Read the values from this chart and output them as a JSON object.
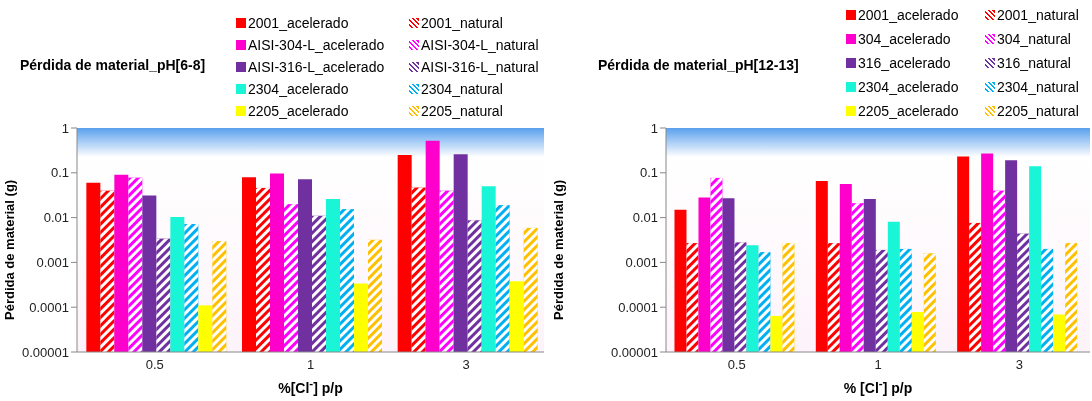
{
  "chart_data": [
    {
      "type": "bar",
      "title": "Pérdida de material_pH[6-8]",
      "xlabel": "%[Cl$^{-}$] p/p",
      "ylabel": "Pérdida de material (g)",
      "categories": [
        "0.5",
        "1",
        "3"
      ],
      "log": "y",
      "ylim": [
        1e-05,
        1
      ],
      "yticks": [
        {
          "value": 1e-05,
          "label": "0.00001"
        },
        0.0001,
        0.001,
        0.01,
        0.1,
        1
      ],
      "grid": false,
      "legend": "top right",
      "series": [
        {
          "name": "2001_acelerado",
          "color": "#ff0000",
          "values": [
            0.06,
            0.08,
            0.25
          ]
        },
        {
          "name": "2001_natural",
          "color": "#ff0000",
          "values": [
            0.04,
            0.046,
            0.047
          ]
        },
        {
          "name": "AISI-304-L_acelerado",
          "color": "#ff00cc",
          "values": [
            0.09,
            0.097,
            0.52
          ]
        },
        {
          "name": "AISI-304-L_natural",
          "color": "#ff00ff",
          "values": [
            0.078,
            0.02,
            0.04
          ]
        },
        {
          "name": "AISI-316-L_acelerado",
          "color": "#7030a0",
          "values": [
            0.031,
            0.072,
            0.26
          ]
        },
        {
          "name": "AISI-316-L_natural",
          "color": "#7030a0",
          "values": [
            0.0034,
            0.011,
            0.0087
          ]
        },
        {
          "name": "2304_acelerado",
          "color": "#19f5d6",
          "values": [
            0.0103,
            0.026,
            0.05
          ]
        },
        {
          "name": "2304_natural",
          "color": "#00b0f0",
          "values": [
            0.0072,
            0.0155,
            0.019
          ]
        },
        {
          "name": "2205_acelerado",
          "color": "#ffff00",
          "values": [
            0.00011,
            0.00034,
            0.00038
          ]
        },
        {
          "name": "2205_natural",
          "color": "#ffc000",
          "values": [
            0.003,
            0.0032,
            0.0059
          ]
        }
      ]
    },
    {
      "type": "bar",
      "title": "Pérdida de material_pH[12-13]",
      "xlabel": "% [Cl$^{-}$] p/p",
      "ylabel": "Pérdida de material (g)",
      "categories": [
        "0.5",
        "1",
        "3"
      ],
      "log": "y",
      "ylim": [
        1e-05,
        1
      ],
      "yticks": [
        {
          "value": 1e-05,
          "label": "0.00001"
        },
        0.0001,
        0.001,
        0.01,
        0.1,
        1
      ],
      "grid": false,
      "legend": "top right",
      "series": [
        {
          "name": "2001_acelerado",
          "color": "#ff0000",
          "values": [
            0.015,
            0.066,
            0.23
          ]
        },
        {
          "name": "2001_natural",
          "color": "#ff0000",
          "values": [
            0.0027,
            0.0027,
            0.0076
          ]
        },
        {
          "name": "304_acelerado",
          "color": "#ff00cc",
          "values": [
            0.028,
            0.056,
            0.27
          ]
        },
        {
          "name": "304_natural",
          "color": "#ff00ff",
          "values": [
            0.077,
            0.021,
            0.04
          ]
        },
        {
          "name": "316_acelerado",
          "color": "#7030a0",
          "values": [
            0.027,
            0.026,
            0.19
          ]
        },
        {
          "name": "316_natural",
          "color": "#7030a0",
          "values": [
            0.0028,
            0.0019,
            0.0044
          ]
        },
        {
          "name": "2304_acelerado",
          "color": "#19f5d6",
          "values": [
            0.0024,
            0.0081,
            0.14
          ]
        },
        {
          "name": "2304_natural",
          "color": "#00b0f0",
          "values": [
            0.0017,
            0.002,
            0.002
          ]
        },
        {
          "name": "2205_acelerado",
          "color": "#ffff00",
          "values": [
            6.4e-05,
            7.8e-05,
            6.9e-05
          ]
        },
        {
          "name": "2205_natural",
          "color": "#ffc000",
          "values": [
            0.0027,
            0.0016,
            0.0027
          ]
        }
      ]
    }
  ]
}
